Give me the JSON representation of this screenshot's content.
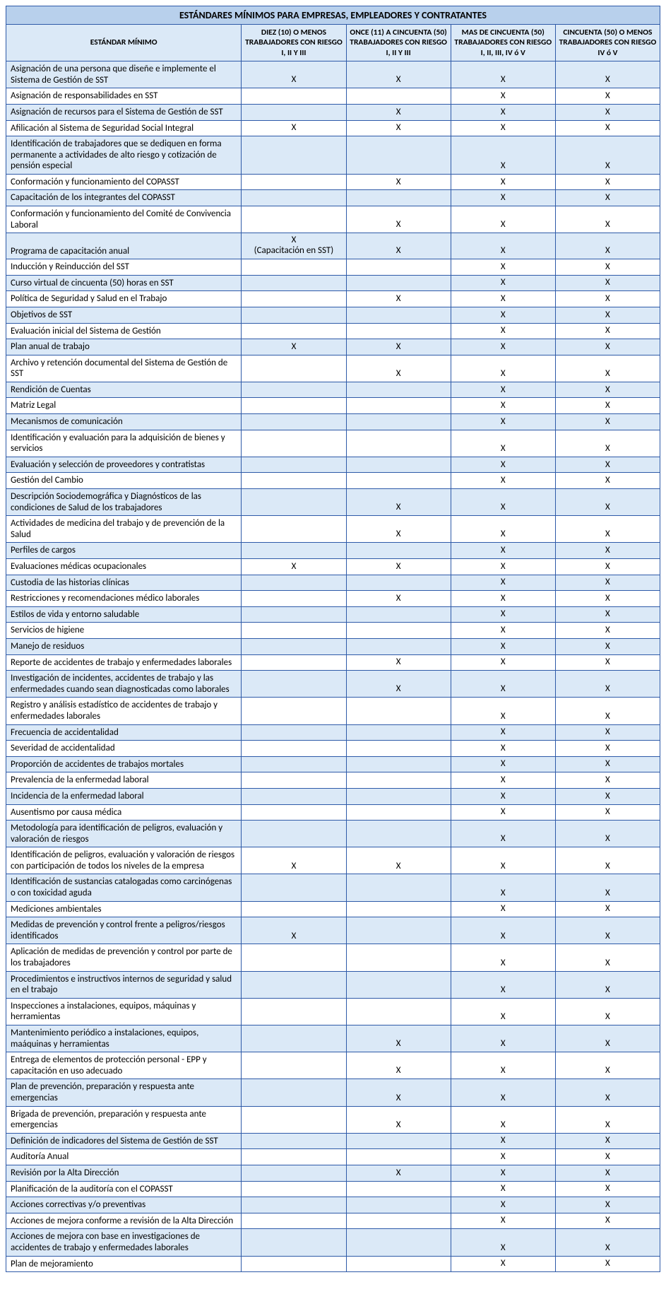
{
  "table": {
    "title": "ESTÁNDARES MÍNIMOS PARA EMPRESAS, EMPLEADORES Y CONTRATANTES",
    "columns": {
      "label": "ESTÁNDAR MÍNIMO",
      "c1": "DIEZ (10) O MENOS TRABAJADORES CON RIESGO I, II Y III",
      "c2": "ONCE (11) A CINCUENTA (50) TRABAJADORES CON RIESGO I, II Y III",
      "c3": "MAS DE CINCUENTA (50) TRABAJADORES CON RIESGO I, II, III, IV ó V",
      "c4": "CINCUENTA (50) O MENOS TRABAJADORES CON RIESGO IV ó V"
    },
    "mark": "X",
    "special_mark": "X\n(Capacitación en SST)",
    "colors": {
      "border": "#2e5aa8",
      "title_bg": "#b8d0ec",
      "header_bg": "#dbe9f7",
      "band_bg": "#dbe9f7",
      "plain_bg": "#ffffff",
      "text": "#000000"
    },
    "rows": [
      {
        "label": "Asignación de una persona que diseñe e implemente el Sistema de Gestión de SST",
        "c": [
          1,
          1,
          1,
          1
        ]
      },
      {
        "label": "Asignación de responsabilidades en SST",
        "c": [
          0,
          0,
          1,
          1
        ]
      },
      {
        "label": "Asignación de recursos para el Sistema de Gestión de SST",
        "c": [
          0,
          1,
          1,
          1
        ]
      },
      {
        "label": "Afilicación al Sistema de Seguridad Social Integral",
        "c": [
          1,
          1,
          1,
          1
        ]
      },
      {
        "label": "Identificación de trabajadores que se dediquen en forma permanente a actividades de alto riesgo y cotización de pensión especial",
        "c": [
          0,
          0,
          1,
          1
        ]
      },
      {
        "label": "Conformación y funcionamiento del COPASST",
        "c": [
          0,
          1,
          1,
          1
        ]
      },
      {
        "label": "Capacitación de los integrantes del COPASST",
        "c": [
          0,
          0,
          1,
          1
        ]
      },
      {
        "label": "Conformación y funcionamiento del Comité de Convivencia Laboral",
        "c": [
          0,
          1,
          1,
          1
        ]
      },
      {
        "label": "Programa de capacitación anual",
        "c": [
          2,
          1,
          1,
          1
        ]
      },
      {
        "label": "Inducción y Reinducción del SST",
        "c": [
          0,
          0,
          1,
          1
        ]
      },
      {
        "label": "Curso virtual de cincuenta (50) horas en SST",
        "c": [
          0,
          0,
          1,
          1
        ]
      },
      {
        "label": "Política de Seguridad y Salud en el Trabajo",
        "c": [
          0,
          1,
          1,
          1
        ]
      },
      {
        "label": "Objetivos de SST",
        "c": [
          0,
          0,
          1,
          1
        ]
      },
      {
        "label": "Evaluación inicial del Sistema de Gestión",
        "c": [
          0,
          0,
          1,
          1
        ]
      },
      {
        "label": "Plan anual de trabajo",
        "c": [
          1,
          1,
          1,
          1
        ]
      },
      {
        "label": "Archivo y retención documental del Sistema de Gestión de SST",
        "c": [
          0,
          1,
          1,
          1
        ]
      },
      {
        "label": "Rendición de Cuentas",
        "c": [
          0,
          0,
          1,
          1
        ]
      },
      {
        "label": "Matriz Legal",
        "c": [
          0,
          0,
          1,
          1
        ]
      },
      {
        "label": "Mecanismos de comunicación",
        "c": [
          0,
          0,
          1,
          1
        ]
      },
      {
        "label": "Identificación y evaluación para la adquisición de bienes y servicios",
        "c": [
          0,
          0,
          1,
          1
        ]
      },
      {
        "label": "Evaluación y selección de proveedores y contratistas",
        "c": [
          0,
          0,
          1,
          1
        ]
      },
      {
        "label": "Gestión del Cambio",
        "c": [
          0,
          0,
          1,
          1
        ]
      },
      {
        "label": "Descripción Sociodemográfica y Diagnósticos de las condiciones de Salud de los trabajadores",
        "c": [
          0,
          1,
          1,
          1
        ]
      },
      {
        "label": "Actividades de medicina del trabajo y de prevención de la Salud",
        "c": [
          0,
          1,
          1,
          1
        ]
      },
      {
        "label": "Perfiles de cargos",
        "c": [
          0,
          0,
          1,
          1
        ]
      },
      {
        "label": "Evaluaciones médicas ocupacionales",
        "c": [
          1,
          1,
          1,
          1
        ]
      },
      {
        "label": "Custodia de las historias clínicas",
        "c": [
          0,
          0,
          1,
          1
        ]
      },
      {
        "label": "Restricciones y recomendaciones médico laborales",
        "c": [
          0,
          1,
          1,
          1
        ]
      },
      {
        "label": "Estilos de vida y entorno saludable",
        "c": [
          0,
          0,
          1,
          1
        ]
      },
      {
        "label": "Servicios de higiene",
        "c": [
          0,
          0,
          1,
          1
        ]
      },
      {
        "label": "Manejo de residuos",
        "c": [
          0,
          0,
          1,
          1
        ]
      },
      {
        "label": "Reporte de accidentes de trabajo y enfermedades laborales",
        "c": [
          0,
          1,
          1,
          1
        ]
      },
      {
        "label": "Investigación de incidentes, accidentes de trabajo y las enfermedades cuando sean diagnosticadas como laborales",
        "c": [
          0,
          1,
          1,
          1
        ]
      },
      {
        "label": "Registro y análisis estadístico de accidentes de trabajo y enfermedades laborales",
        "c": [
          0,
          0,
          1,
          1
        ]
      },
      {
        "label": "Frecuencia de accidentalidad",
        "c": [
          0,
          0,
          1,
          1
        ]
      },
      {
        "label": "Severidad de accidentalidad",
        "c": [
          0,
          0,
          1,
          1
        ]
      },
      {
        "label": "Proporción de accidentes de trabajos mortales",
        "c": [
          0,
          0,
          1,
          1
        ]
      },
      {
        "label": "Prevalencia de la enfermedad laboral",
        "c": [
          0,
          0,
          1,
          1
        ]
      },
      {
        "label": "Incidencia de la enfermedad laboral",
        "c": [
          0,
          0,
          1,
          1
        ]
      },
      {
        "label": "Ausentismo por causa médica",
        "c": [
          0,
          0,
          1,
          1
        ]
      },
      {
        "label": "Metodología para identificación de peligros, evaluación y valoración de riesgos",
        "c": [
          0,
          0,
          1,
          1
        ]
      },
      {
        "label": "Identificación de peligros, evaluación y valoración de riesgos con participación de todos los niveles de la empresa",
        "c": [
          1,
          1,
          1,
          1
        ]
      },
      {
        "label": "Identificación de sustancias catalogadas como carcinógenas o con toxicidad aguda",
        "c": [
          0,
          0,
          1,
          1
        ]
      },
      {
        "label": "Mediciones ambientales",
        "c": [
          0,
          0,
          1,
          1
        ]
      },
      {
        "label": "Medidas de prevención y control frente a peligros/riesgos identificados",
        "c": [
          1,
          0,
          1,
          1
        ]
      },
      {
        "label": "Aplicación de medidas de prevención y control por parte de los trabajadores",
        "c": [
          0,
          0,
          1,
          1
        ]
      },
      {
        "label": "Procedimientos e instructivos internos de seguridad y salud en el trabajo",
        "c": [
          0,
          0,
          1,
          1
        ]
      },
      {
        "label": "Inspecciones a instalaciones, equipos, máquinas y herramientas",
        "c": [
          0,
          0,
          1,
          1
        ]
      },
      {
        "label": "Mantenimiento periódico a instalaciones, equipos, maáquinas y herramientas",
        "c": [
          0,
          1,
          1,
          1
        ]
      },
      {
        "label": "Entrega de elementos de protección personal - EPP y capacitación en uso adecuado",
        "c": [
          0,
          1,
          1,
          1
        ]
      },
      {
        "label": "Plan de prevención, preparación y respuesta ante emergencias",
        "c": [
          0,
          1,
          1,
          1
        ]
      },
      {
        "label": "Brigada de prevención, preparación y respuesta ante emergencias",
        "c": [
          0,
          1,
          1,
          1
        ]
      },
      {
        "label": "Definición de indicadores del Sistema de Gestión de SST",
        "c": [
          0,
          0,
          1,
          1
        ]
      },
      {
        "label": "Auditoría Anual",
        "c": [
          0,
          0,
          1,
          1
        ]
      },
      {
        "label": "Revisión por la Alta Dirección",
        "c": [
          0,
          1,
          1,
          1
        ]
      },
      {
        "label": "Planificación de la auditoría con el COPASST",
        "c": [
          0,
          0,
          1,
          1
        ]
      },
      {
        "label": "Acciones correctivas y/o preventivas",
        "c": [
          0,
          0,
          1,
          1
        ]
      },
      {
        "label": "Acciones de mejora conforme a revisión de la Alta Dirección",
        "c": [
          0,
          0,
          1,
          1
        ]
      },
      {
        "label": "Acciones de mejora con base en investigaciones de accidentes de trabajo y enfermedades laborales",
        "c": [
          0,
          0,
          1,
          1
        ]
      },
      {
        "label": "Plan de mejoramiento",
        "c": [
          0,
          0,
          1,
          1
        ]
      }
    ]
  }
}
